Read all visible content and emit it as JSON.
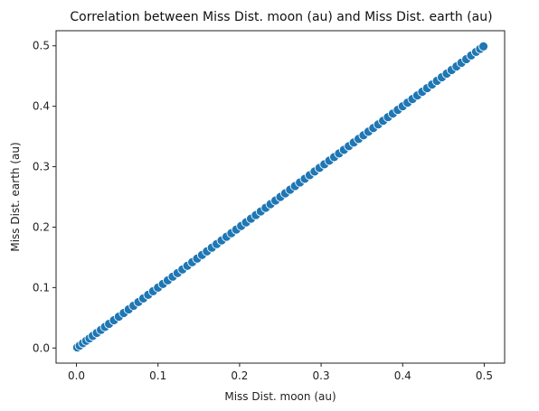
{
  "chart_data": {
    "type": "scatter",
    "title": "Correlation between Miss Dist. moon (au) and Miss Dist. earth (au)",
    "xlabel": "Miss Dist. moon (au)",
    "ylabel": "Miss Dist. earth (au)",
    "xlim": [
      -0.025,
      0.525
    ],
    "ylim": [
      -0.025,
      0.525
    ],
    "x_ticks": [
      0.0,
      0.1,
      0.2,
      0.3,
      0.4,
      0.5
    ],
    "x_tick_labels": [
      "0.0",
      "0.1",
      "0.2",
      "0.3",
      "0.4",
      "0.5"
    ],
    "y_ticks": [
      0.0,
      0.1,
      0.2,
      0.3,
      0.4,
      0.5
    ],
    "y_tick_labels": [
      "0.0",
      "0.1",
      "0.2",
      "0.3",
      "0.4",
      "0.5"
    ],
    "grid": false,
    "marker_color": "#1f77b4",
    "marker_edge_color": "#ffffff",
    "x": [
      0.001,
      0.004,
      0.008,
      0.012,
      0.016,
      0.02,
      0.025,
      0.03,
      0.035,
      0.04,
      0.046,
      0.052,
      0.058,
      0.064,
      0.07,
      0.076,
      0.082,
      0.088,
      0.094,
      0.1,
      0.106,
      0.112,
      0.118,
      0.124,
      0.13,
      0.136,
      0.142,
      0.148,
      0.154,
      0.16,
      0.166,
      0.172,
      0.178,
      0.184,
      0.19,
      0.196,
      0.202,
      0.208,
      0.214,
      0.22,
      0.226,
      0.232,
      0.238,
      0.244,
      0.25,
      0.256,
      0.262,
      0.268,
      0.274,
      0.28,
      0.286,
      0.292,
      0.298,
      0.304,
      0.31,
      0.316,
      0.322,
      0.328,
      0.334,
      0.34,
      0.346,
      0.352,
      0.358,
      0.364,
      0.37,
      0.376,
      0.382,
      0.388,
      0.394,
      0.4,
      0.406,
      0.412,
      0.418,
      0.424,
      0.43,
      0.436,
      0.442,
      0.448,
      0.454,
      0.46,
      0.466,
      0.472,
      0.478,
      0.484,
      0.49,
      0.495,
      0.499
    ],
    "y": [
      0.001,
      0.004,
      0.008,
      0.012,
      0.016,
      0.02,
      0.025,
      0.03,
      0.035,
      0.04,
      0.046,
      0.052,
      0.058,
      0.064,
      0.07,
      0.076,
      0.082,
      0.088,
      0.094,
      0.1,
      0.106,
      0.112,
      0.118,
      0.124,
      0.13,
      0.136,
      0.142,
      0.148,
      0.154,
      0.16,
      0.166,
      0.172,
      0.178,
      0.184,
      0.19,
      0.196,
      0.202,
      0.208,
      0.214,
      0.22,
      0.226,
      0.232,
      0.238,
      0.244,
      0.25,
      0.256,
      0.262,
      0.268,
      0.274,
      0.28,
      0.286,
      0.292,
      0.298,
      0.304,
      0.31,
      0.316,
      0.322,
      0.328,
      0.334,
      0.34,
      0.346,
      0.352,
      0.358,
      0.364,
      0.37,
      0.376,
      0.382,
      0.388,
      0.394,
      0.4,
      0.406,
      0.412,
      0.418,
      0.424,
      0.43,
      0.436,
      0.442,
      0.448,
      0.454,
      0.46,
      0.466,
      0.472,
      0.478,
      0.484,
      0.49,
      0.495,
      0.499
    ]
  }
}
